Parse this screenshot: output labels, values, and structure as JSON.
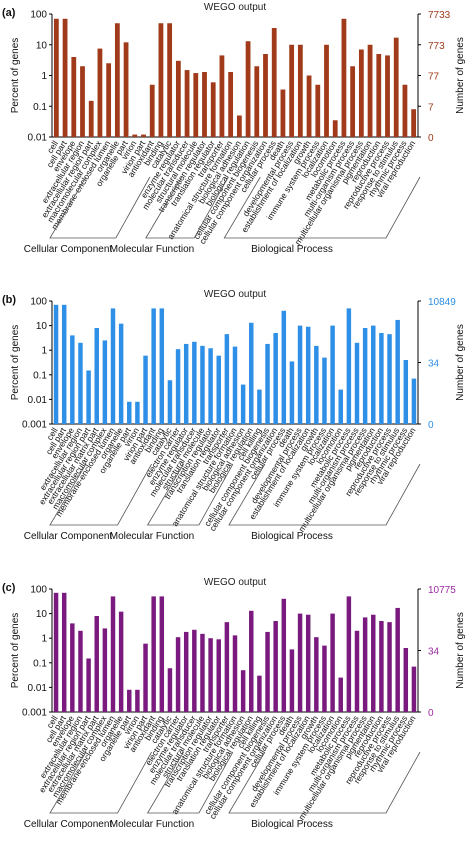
{
  "chart_data": [
    {
      "type": "bar",
      "panel_label": "(a)",
      "title": "WEGO output",
      "ylabel": "Percent of genes",
      "ylabel_right": "Number of genes",
      "yscale": "log",
      "ylim": [
        0.01,
        100
      ],
      "yticks": [
        "100",
        "10",
        "1",
        "0.1",
        "0.01"
      ],
      "right_ticks": [
        "7733",
        "773",
        "77",
        "7",
        "0"
      ],
      "color": "#a03a1a",
      "right_tick_color": "#a03a1a",
      "categories": [
        "cell",
        "cell part",
        "envelope",
        "extracellular region",
        "extracellular region part",
        "macromolecular complex",
        "membrane-enclosed lumen",
        "organelle",
        "organelle part",
        "virion",
        "virion part",
        "antioxidant",
        "binding",
        "catalytic",
        "enzyme regulator",
        "molecular transducer",
        "structural molecule",
        "transcription regulator",
        "translation regulator",
        "transporter",
        "anatomical structure formation",
        "biological adhesion",
        "biological regulation",
        "cellular component biogenesis",
        "cellular component organization",
        "cellular process",
        "death",
        "developmental process",
        "establishment of localization",
        "growth",
        "immune system process",
        "localization",
        "locomotion",
        "metabolic process",
        "multi-organism process",
        "multicellular organismal process",
        "pigmentation",
        "reproduction",
        "reproductive process",
        "response to stimulus",
        "rhythmic process",
        "viral reproduction"
      ],
      "values": [
        70,
        70,
        4,
        2,
        0.15,
        7.5,
        2.5,
        50,
        12,
        0.012,
        0.012,
        0.5,
        50,
        50,
        3,
        1.5,
        1.2,
        1.3,
        0.6,
        4.5,
        1.3,
        0.05,
        13,
        2,
        5,
        35,
        0.35,
        10,
        10,
        1,
        0.5,
        10,
        0.035,
        70,
        2,
        7,
        10,
        5,
        4.5,
        17,
        0.5,
        0.08
      ],
      "group_labels": [
        "Cellular Component",
        "Molecular Function",
        "Biological Process"
      ]
    },
    {
      "type": "bar",
      "panel_label": "(b)",
      "title": "WEGO output",
      "ylabel": "Percent of genes",
      "ylabel_right": "Number of genes",
      "yscale": "log",
      "ylim": [
        0.001,
        100
      ],
      "yticks": [
        "100",
        "10",
        "1",
        "0.1",
        "0.01",
        "0.001"
      ],
      "right_ticks": [
        "10849",
        "34",
        "0"
      ],
      "color": "#2e8fe6",
      "right_tick_color": "#2e8fe6",
      "categories": [
        "cell",
        "cell part",
        "envelope",
        "extracellular region",
        "extracellular region part",
        "extracellular matrix part",
        "macromolecular complex",
        "membrane-enclosed lumen",
        "organelle",
        "organelle part",
        "virion",
        "virion part",
        "antioxidant",
        "binding",
        "catalytic",
        "electron carrier",
        "enzyme regulator",
        "molecular transducer",
        "structural molecule",
        "transcription regulator",
        "translation regulator",
        "transporter",
        "anatomical structure formation",
        "biological adhesion",
        "biological regulation",
        "cell killing",
        "cellular component biogenesis",
        "cellular component organization",
        "cellular process",
        "death",
        "developmental process",
        "establishment of localization",
        "growth",
        "immune system process",
        "localization",
        "locomotion",
        "metabolic process",
        "multi-organism process",
        "multicellular organismal process",
        "pigmentation",
        "reproduction",
        "reproductive process",
        "response to stimulus",
        "rhythmic process",
        "viral reproduction"
      ],
      "values": [
        70,
        70,
        4,
        2,
        0.15,
        8,
        2.5,
        50,
        12,
        0.008,
        0.008,
        0.6,
        50,
        50,
        0.06,
        1.1,
        1.8,
        2.2,
        1.5,
        1.2,
        0.6,
        4.5,
        1.4,
        0.04,
        13,
        0.025,
        1.8,
        5,
        40,
        0.35,
        10,
        9,
        1.5,
        0.5,
        10,
        0.025,
        50,
        2,
        8,
        10,
        5,
        4.5,
        17,
        0.4,
        0.07
      ],
      "group_labels": [
        "Cellular Component",
        "Molecular Function",
        "Biological Process"
      ]
    },
    {
      "type": "bar",
      "panel_label": "(c)",
      "title": "WEGO output",
      "ylabel": "Percent of genes",
      "ylabel_right": "Number of genes",
      "yscale": "log",
      "ylim": [
        0.001,
        100
      ],
      "yticks": [
        "100",
        "10",
        "1",
        "0.1",
        "0.01",
        "0.001"
      ],
      "right_ticks": [
        "10775",
        "34",
        "0"
      ],
      "color": "#7a1a7e",
      "right_tick_color": "#9b2aa0",
      "categories": [
        "cell",
        "cell part",
        "envelope",
        "extracellular region",
        "extracellular region part",
        "extracellular matrix part",
        "macromolecular complex",
        "membrane-enclosed lumen",
        "organelle",
        "organelle part",
        "virion",
        "virion part",
        "antioxidant",
        "binding",
        "catalytic",
        "electron carrier",
        "enzyme regulator",
        "molecular transducer",
        "structural molecule",
        "transcription regulator",
        "translation regulator",
        "transporter",
        "anatomical structure formation",
        "biological adhesion",
        "biological regulation",
        "cell killing",
        "cellular component biogenesis",
        "cellular component organization",
        "cellular process",
        "death",
        "developmental process",
        "establishment of localization",
        "growth",
        "immune system process",
        "localization",
        "locomotion",
        "metabolic process",
        "multi-organism process",
        "multicellular organismal process",
        "pigmentation",
        "reproduction",
        "reproductive process",
        "response to stimulus",
        "rhythmic process",
        "viral reproduction"
      ],
      "values": [
        70,
        70,
        4,
        2,
        0.15,
        8,
        2.5,
        50,
        12,
        0.008,
        0.008,
        0.6,
        50,
        50,
        0.06,
        1.1,
        1.8,
        2.2,
        1.5,
        1,
        0.9,
        4.5,
        1.3,
        0.05,
        13,
        0.03,
        1.8,
        5,
        40,
        0.35,
        10,
        9,
        1.1,
        0.5,
        10,
        0.025,
        50,
        2,
        7,
        9,
        5,
        4.5,
        17,
        0.4,
        0.07
      ],
      "group_labels": [
        "Cellular Component",
        "Molecular Function",
        "Biological Process"
      ]
    }
  ]
}
